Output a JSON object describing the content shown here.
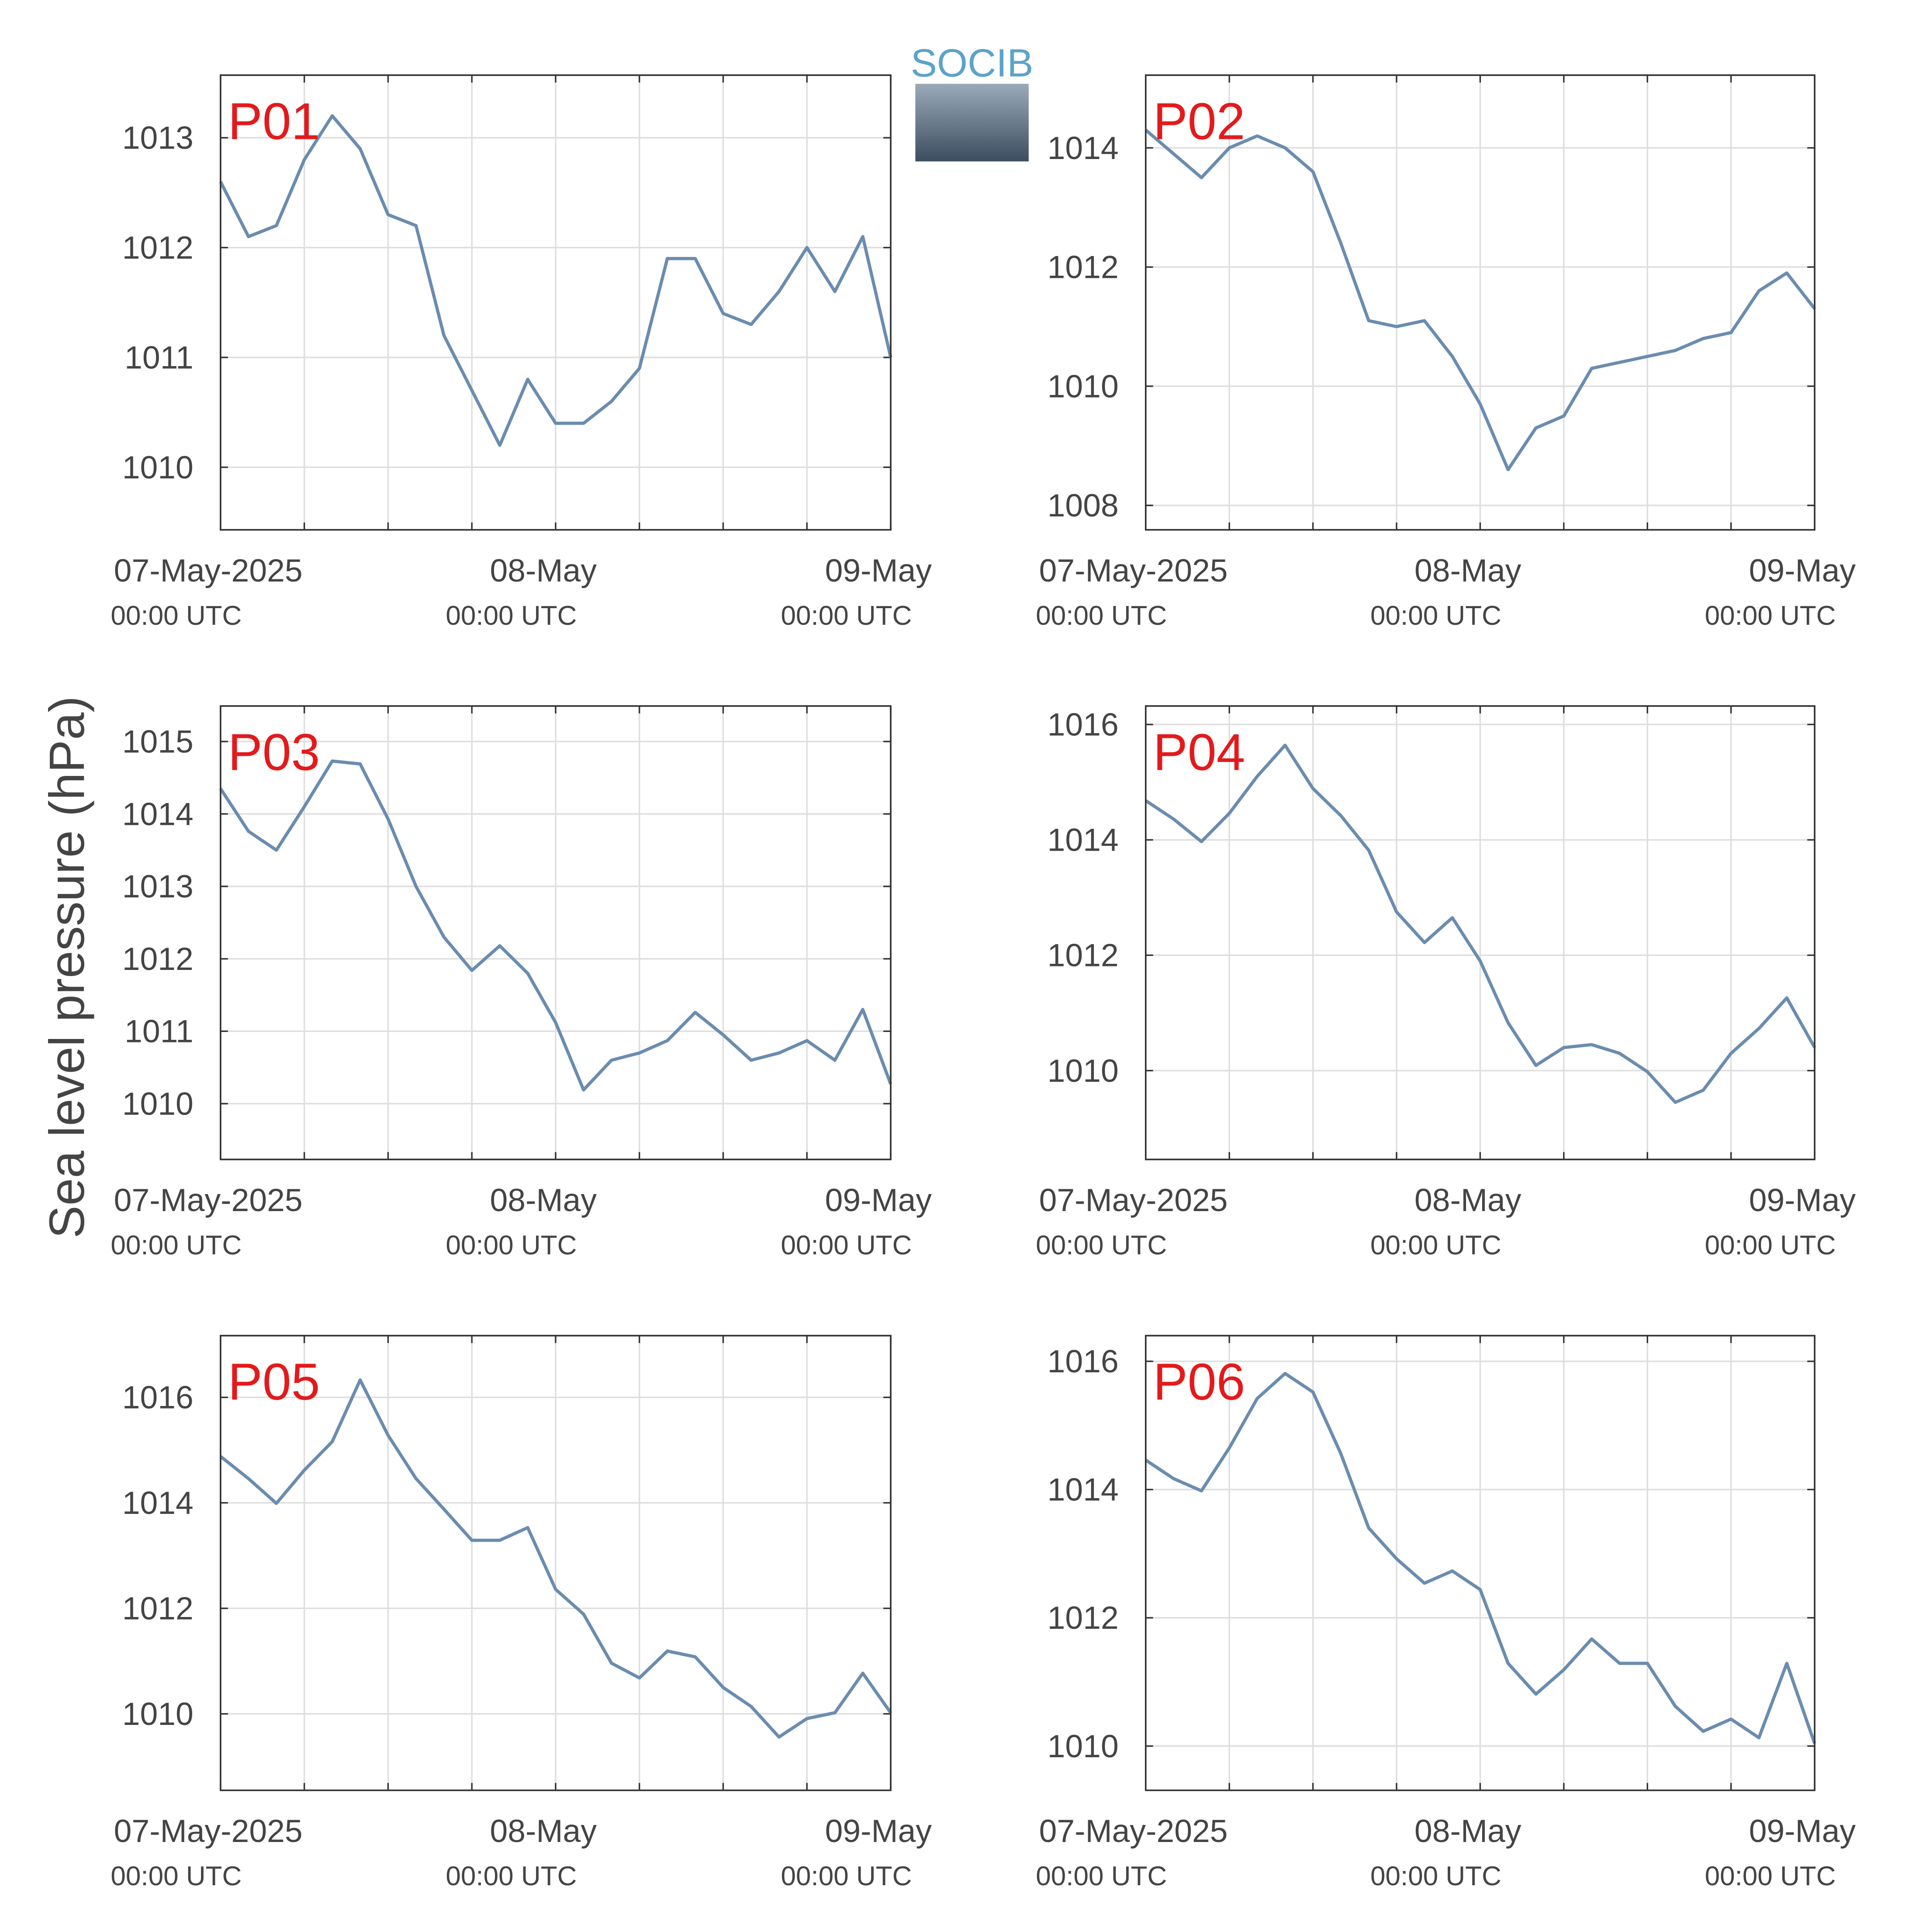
{
  "ylabel": "Sea level pressure (hPa)",
  "logo": "SOCIB",
  "chart_data": [
    {
      "type": "line",
      "title": "P01",
      "color": "#6a8caf",
      "grid": true,
      "x": [
        "2025-05-07T00:00",
        "2025-05-07T02:00",
        "2025-05-07T04:00",
        "2025-05-07T06:00",
        "2025-05-07T08:00",
        "2025-05-07T10:00",
        "2025-05-07T12:00",
        "2025-05-07T14:00",
        "2025-05-07T16:00",
        "2025-05-07T18:00",
        "2025-05-07T20:00",
        "2025-05-07T22:00",
        "2025-05-08T00:00",
        "2025-05-08T02:00",
        "2025-05-08T04:00",
        "2025-05-08T06:00",
        "2025-05-08T08:00",
        "2025-05-08T10:00",
        "2025-05-08T12:00",
        "2025-05-08T14:00",
        "2025-05-08T16:00",
        "2025-05-08T18:00",
        "2025-05-08T20:00",
        "2025-05-08T22:00",
        "2025-05-09T00:00"
      ],
      "values": [
        1012.6,
        1012.1,
        1012.2,
        1012.8,
        1013.2,
        1012.9,
        1012.3,
        1012.2,
        1011.2,
        1010.7,
        1010.2,
        1010.8,
        1010.4,
        1010.4,
        1010.6,
        1010.9,
        1011.9,
        1011.9,
        1011.4,
        1011.3,
        1011.6,
        1012.0,
        1011.6,
        1012.1,
        1011.0
      ],
      "xlim": [
        "2025-05-07T00:00",
        "2025-05-09T00:00"
      ],
      "xticks": [
        {
          "value": "2025-05-07T00:00",
          "label": "07-May-2025",
          "sublabel": "00:00 UTC"
        },
        {
          "value": "2025-05-07T06:00",
          "label": null
        },
        {
          "value": "2025-05-07T12:00",
          "label": null
        },
        {
          "value": "2025-05-07T18:00",
          "label": null
        },
        {
          "value": "2025-05-08T00:00",
          "label": "08-May",
          "sublabel": "00:00 UTC"
        },
        {
          "value": "2025-05-08T06:00",
          "label": null
        },
        {
          "value": "2025-05-08T12:00",
          "label": null
        },
        {
          "value": "2025-05-08T18:00",
          "label": null
        },
        {
          "value": "2025-05-09T00:00",
          "label": "09-May",
          "sublabel": "00:00 UTC"
        }
      ],
      "ylim": [
        1009.43,
        1013.57
      ],
      "yticks": [
        1010,
        1011,
        1012,
        1013
      ]
    },
    {
      "type": "line",
      "title": "P02",
      "color": "#6a8caf",
      "grid": true,
      "x": [
        "2025-05-07T00:00",
        "2025-05-07T02:00",
        "2025-05-07T04:00",
        "2025-05-07T06:00",
        "2025-05-07T08:00",
        "2025-05-07T10:00",
        "2025-05-07T12:00",
        "2025-05-07T14:00",
        "2025-05-07T16:00",
        "2025-05-07T18:00",
        "2025-05-07T20:00",
        "2025-05-07T22:00",
        "2025-05-08T00:00",
        "2025-05-08T02:00",
        "2025-05-08T04:00",
        "2025-05-08T06:00",
        "2025-05-08T08:00",
        "2025-05-08T10:00",
        "2025-05-08T12:00",
        "2025-05-08T14:00",
        "2025-05-08T16:00",
        "2025-05-08T18:00",
        "2025-05-08T20:00",
        "2025-05-08T22:00",
        "2025-05-09T00:00"
      ],
      "values": [
        1014.3,
        1013.9,
        1013.5,
        1014.0,
        1014.2,
        1014.0,
        1013.6,
        1012.4,
        1011.1,
        1011.0,
        1011.1,
        1010.5,
        1009.7,
        1008.6,
        1009.3,
        1009.5,
        1010.3,
        1010.4,
        1010.5,
        1010.6,
        1010.8,
        1010.9,
        1011.6,
        1011.9,
        1011.3
      ],
      "xlim": [
        "2025-05-07T00:00",
        "2025-05-09T00:00"
      ],
      "xticks": [
        {
          "value": "2025-05-07T00:00",
          "label": "07-May-2025",
          "sublabel": "00:00 UTC"
        },
        {
          "value": "2025-05-07T06:00",
          "label": null
        },
        {
          "value": "2025-05-07T12:00",
          "label": null
        },
        {
          "value": "2025-05-07T18:00",
          "label": null
        },
        {
          "value": "2025-05-08T00:00",
          "label": "08-May",
          "sublabel": "00:00 UTC"
        },
        {
          "value": "2025-05-08T06:00",
          "label": null
        },
        {
          "value": "2025-05-08T12:00",
          "label": null
        },
        {
          "value": "2025-05-08T18:00",
          "label": null
        },
        {
          "value": "2025-05-09T00:00",
          "label": "09-May",
          "sublabel": "00:00 UTC"
        }
      ],
      "ylim": [
        1007.59,
        1015.22
      ],
      "yticks": [
        1008,
        1010,
        1012,
        1014
      ]
    },
    {
      "type": "line",
      "title": "P03",
      "color": "#6a8caf",
      "grid": true,
      "x": [
        "2025-05-07T00:00",
        "2025-05-07T02:00",
        "2025-05-07T04:00",
        "2025-05-07T06:00",
        "2025-05-07T08:00",
        "2025-05-07T10:00",
        "2025-05-07T12:00",
        "2025-05-07T14:00",
        "2025-05-07T16:00",
        "2025-05-07T18:00",
        "2025-05-07T20:00",
        "2025-05-07T22:00",
        "2025-05-08T00:00",
        "2025-05-08T02:00",
        "2025-05-08T04:00",
        "2025-05-08T06:00",
        "2025-05-08T08:00",
        "2025-05-08T10:00",
        "2025-05-08T12:00",
        "2025-05-08T14:00",
        "2025-05-08T16:00",
        "2025-05-08T18:00",
        "2025-05-08T20:00",
        "2025-05-08T22:00",
        "2025-05-09T00:00"
      ],
      "values": [
        1014.35,
        1013.76,
        1013.5,
        1014.1,
        1014.73,
        1014.69,
        1013.93,
        1013.0,
        1012.3,
        1011.84,
        1012.18,
        1011.8,
        1011.12,
        1010.19,
        1010.6,
        1010.7,
        1010.87,
        1011.26,
        1010.95,
        1010.6,
        1010.7,
        1010.87,
        1010.6,
        1011.3,
        1010.27
      ],
      "xlim": [
        "2025-05-07T00:00",
        "2025-05-09T00:00"
      ],
      "xticks": [
        {
          "value": "2025-05-07T00:00",
          "label": "07-May-2025",
          "sublabel": "00:00 UTC"
        },
        {
          "value": "2025-05-07T06:00",
          "label": null
        },
        {
          "value": "2025-05-07T12:00",
          "label": null
        },
        {
          "value": "2025-05-07T18:00",
          "label": null
        },
        {
          "value": "2025-05-08T00:00",
          "label": "08-May",
          "sublabel": "00:00 UTC"
        },
        {
          "value": "2025-05-08T06:00",
          "label": null
        },
        {
          "value": "2025-05-08T12:00",
          "label": null
        },
        {
          "value": "2025-05-08T18:00",
          "label": null
        },
        {
          "value": "2025-05-09T00:00",
          "label": "09-May",
          "sublabel": "00:00 UTC"
        }
      ],
      "ylim": [
        1009.23,
        1015.49
      ],
      "yticks": [
        1010,
        1011,
        1012,
        1013,
        1014,
        1015
      ]
    },
    {
      "type": "line",
      "title": "P04",
      "color": "#6a8caf",
      "grid": true,
      "x": [
        "2025-05-07T00:00",
        "2025-05-07T02:00",
        "2025-05-07T04:00",
        "2025-05-07T06:00",
        "2025-05-07T08:00",
        "2025-05-07T10:00",
        "2025-05-07T12:00",
        "2025-05-07T14:00",
        "2025-05-07T16:00",
        "2025-05-07T18:00",
        "2025-05-07T20:00",
        "2025-05-07T22:00",
        "2025-05-08T00:00",
        "2025-05-08T02:00",
        "2025-05-08T04:00",
        "2025-05-08T06:00",
        "2025-05-08T08:00",
        "2025-05-08T10:00",
        "2025-05-08T12:00",
        "2025-05-08T14:00",
        "2025-05-08T16:00",
        "2025-05-08T18:00",
        "2025-05-08T20:00",
        "2025-05-08T22:00",
        "2025-05-09T00:00"
      ],
      "values": [
        1014.68,
        1014.36,
        1013.97,
        1014.46,
        1015.1,
        1015.64,
        1014.89,
        1014.42,
        1013.82,
        1012.75,
        1012.22,
        1012.65,
        1011.9,
        1010.83,
        1010.09,
        1010.4,
        1010.45,
        1010.3,
        1009.98,
        1009.45,
        1009.66,
        1010.3,
        1010.73,
        1011.26,
        1010.4
      ],
      "xlim": [
        "2025-05-07T00:00",
        "2025-05-09T00:00"
      ],
      "xticks": [
        {
          "value": "2025-05-07T00:00",
          "label": "07-May-2025",
          "sublabel": "00:00 UTC"
        },
        {
          "value": "2025-05-07T06:00",
          "label": null
        },
        {
          "value": "2025-05-07T12:00",
          "label": null
        },
        {
          "value": "2025-05-07T18:00",
          "label": null
        },
        {
          "value": "2025-05-08T00:00",
          "label": "08-May",
          "sublabel": "00:00 UTC"
        },
        {
          "value": "2025-05-08T06:00",
          "label": null
        },
        {
          "value": "2025-05-08T12:00",
          "label": null
        },
        {
          "value": "2025-05-08T18:00",
          "label": null
        },
        {
          "value": "2025-05-09T00:00",
          "label": "09-May",
          "sublabel": "00:00 UTC"
        }
      ],
      "ylim": [
        1008.46,
        1016.32
      ],
      "yticks": [
        1010,
        1012,
        1014,
        1016
      ]
    },
    {
      "type": "line",
      "title": "P05",
      "color": "#6a8caf",
      "grid": true,
      "x": [
        "2025-05-07T00:00",
        "2025-05-07T02:00",
        "2025-05-07T04:00",
        "2025-05-07T06:00",
        "2025-05-07T08:00",
        "2025-05-07T10:00",
        "2025-05-07T12:00",
        "2025-05-07T14:00",
        "2025-05-07T16:00",
        "2025-05-07T18:00",
        "2025-05-07T20:00",
        "2025-05-07T22:00",
        "2025-05-08T00:00",
        "2025-05-08T02:00",
        "2025-05-08T04:00",
        "2025-05-08T06:00",
        "2025-05-08T08:00",
        "2025-05-08T10:00",
        "2025-05-08T12:00",
        "2025-05-08T14:00",
        "2025-05-08T16:00",
        "2025-05-08T18:00",
        "2025-05-08T20:00",
        "2025-05-08T22:00",
        "2025-05-09T00:00"
      ],
      "values": [
        1014.88,
        1014.46,
        1013.99,
        1014.62,
        1015.16,
        1016.33,
        1015.28,
        1014.46,
        1013.88,
        1013.29,
        1013.29,
        1013.53,
        1012.36,
        1011.89,
        1010.96,
        1010.68,
        1011.19,
        1011.08,
        1010.5,
        1010.14,
        1009.56,
        1009.91,
        1010.02,
        1010.77,
        1010.02
      ],
      "xlim": [
        "2025-05-07T00:00",
        "2025-05-09T00:00"
      ],
      "xticks": [
        {
          "value": "2025-05-07T00:00",
          "label": "07-May-2025",
          "sublabel": "00:00 UTC"
        },
        {
          "value": "2025-05-07T06:00",
          "label": null
        },
        {
          "value": "2025-05-07T12:00",
          "label": null
        },
        {
          "value": "2025-05-07T18:00",
          "label": null
        },
        {
          "value": "2025-05-08T00:00",
          "label": "08-May",
          "sublabel": "00:00 UTC"
        },
        {
          "value": "2025-05-08T06:00",
          "label": null
        },
        {
          "value": "2025-05-08T12:00",
          "label": null
        },
        {
          "value": "2025-05-08T18:00",
          "label": null
        },
        {
          "value": "2025-05-09T00:00",
          "label": "09-May",
          "sublabel": "00:00 UTC"
        }
      ],
      "ylim": [
        1008.55,
        1017.17
      ],
      "yticks": [
        1010,
        1012,
        1014,
        1016
      ]
    },
    {
      "type": "line",
      "title": "P06",
      "color": "#6a8caf",
      "grid": true,
      "x": [
        "2025-05-07T00:00",
        "2025-05-07T02:00",
        "2025-05-07T04:00",
        "2025-05-07T06:00",
        "2025-05-07T08:00",
        "2025-05-07T10:00",
        "2025-05-07T12:00",
        "2025-05-07T14:00",
        "2025-05-07T16:00",
        "2025-05-07T18:00",
        "2025-05-07T20:00",
        "2025-05-07T22:00",
        "2025-05-08T00:00",
        "2025-05-08T02:00",
        "2025-05-08T04:00",
        "2025-05-08T06:00",
        "2025-05-08T08:00",
        "2025-05-08T10:00",
        "2025-05-08T12:00",
        "2025-05-08T14:00",
        "2025-05-08T16:00",
        "2025-05-08T18:00",
        "2025-05-08T20:00",
        "2025-05-08T22:00",
        "2025-05-09T00:00"
      ],
      "values": [
        1014.46,
        1014.17,
        1013.98,
        1014.65,
        1015.42,
        1015.81,
        1015.52,
        1014.56,
        1013.4,
        1012.92,
        1012.54,
        1012.73,
        1012.44,
        1011.29,
        1010.81,
        1011.19,
        1011.67,
        1011.29,
        1011.29,
        1010.62,
        1010.23,
        1010.42,
        1010.13,
        1011.29,
        1010.04
      ],
      "xlim": [
        "2025-05-07T00:00",
        "2025-05-09T00:00"
      ],
      "xticks": [
        {
          "value": "2025-05-07T00:00",
          "label": "07-May-2025",
          "sublabel": "00:00 UTC"
        },
        {
          "value": "2025-05-07T06:00",
          "label": null
        },
        {
          "value": "2025-05-07T12:00",
          "label": null
        },
        {
          "value": "2025-05-07T18:00",
          "label": null
        },
        {
          "value": "2025-05-08T00:00",
          "label": "08-May",
          "sublabel": "00:00 UTC"
        },
        {
          "value": "2025-05-08T06:00",
          "label": null
        },
        {
          "value": "2025-05-08T12:00",
          "label": null
        },
        {
          "value": "2025-05-08T18:00",
          "label": null
        },
        {
          "value": "2025-05-09T00:00",
          "label": "09-May",
          "sublabel": "00:00 UTC"
        }
      ],
      "ylim": [
        1009.31,
        1016.4
      ],
      "yticks": [
        1010,
        1012,
        1014,
        1016
      ]
    }
  ]
}
